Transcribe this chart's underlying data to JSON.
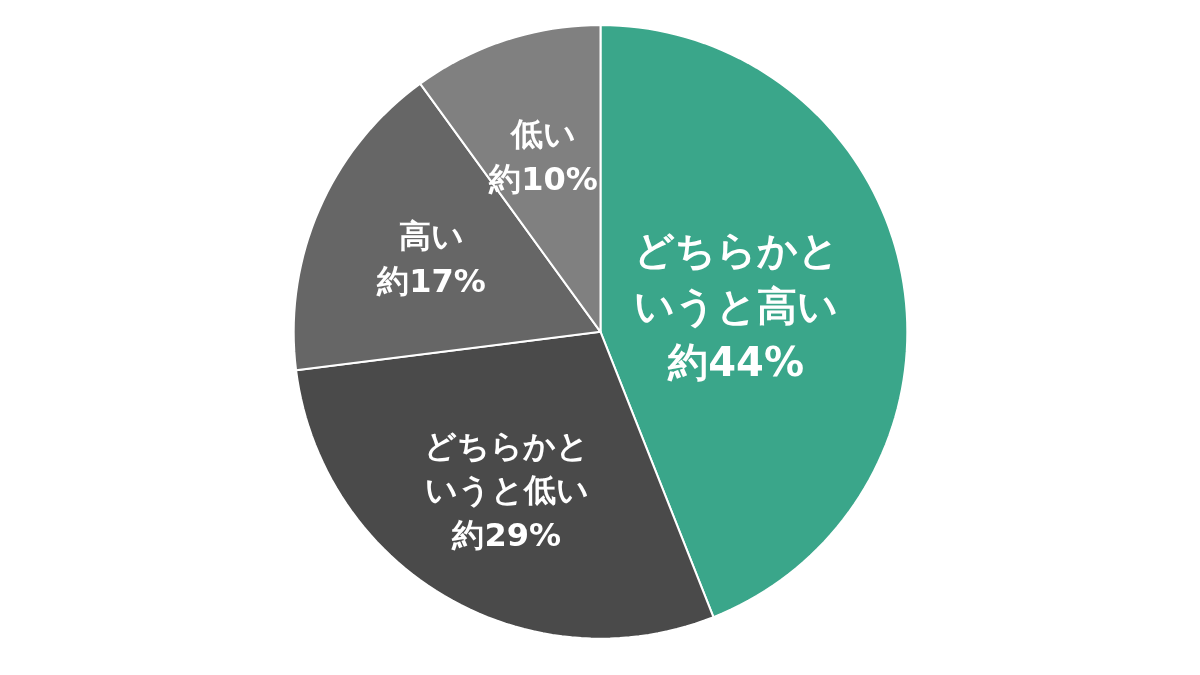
{
  "chart_data": {
    "type": "pie",
    "categories": [
      "どちらかというと高い",
      "どちらかというと低い",
      "高い",
      "低い"
    ],
    "values": [
      44,
      29,
      17,
      10
    ],
    "value_labels": [
      "約44%",
      "約29%",
      "約17%",
      "約10%"
    ],
    "colors": [
      "#3aa68a",
      "#4a4a4a",
      "#666666",
      "#808080"
    ],
    "legend": false
  }
}
